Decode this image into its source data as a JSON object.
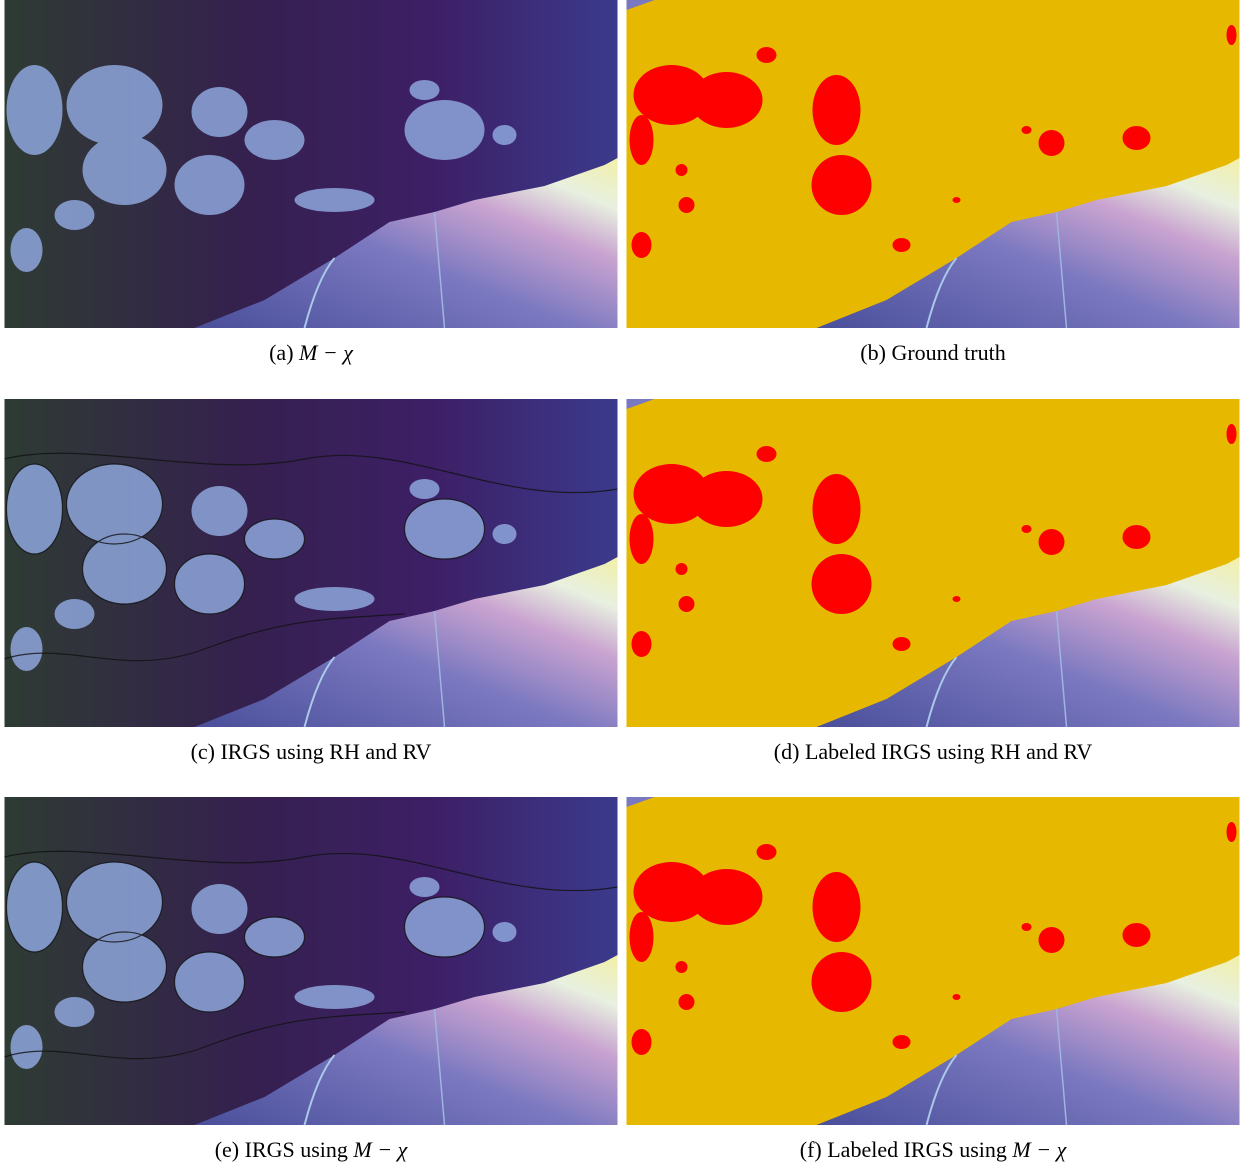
{
  "panels": [
    {
      "label": "(a)",
      "text": "",
      "math": "M − χ",
      "kind": "scene"
    },
    {
      "label": "(b)",
      "text": "Ground truth",
      "math": "",
      "kind": "labels"
    },
    {
      "label": "(c)",
      "text": "IRGS using RH and RV",
      "math": "",
      "kind": "segmented"
    },
    {
      "label": "(d)",
      "text": "Labeled IRGS using RH and RV",
      "math": "",
      "kind": "labels"
    },
    {
      "label": "(e)",
      "text": "IRGS using",
      "math": "M − χ",
      "kind": "segmented"
    },
    {
      "label": "(f)",
      "text": "Labeled IRGS using",
      "math": "M − χ",
      "kind": "labels"
    }
  ]
}
